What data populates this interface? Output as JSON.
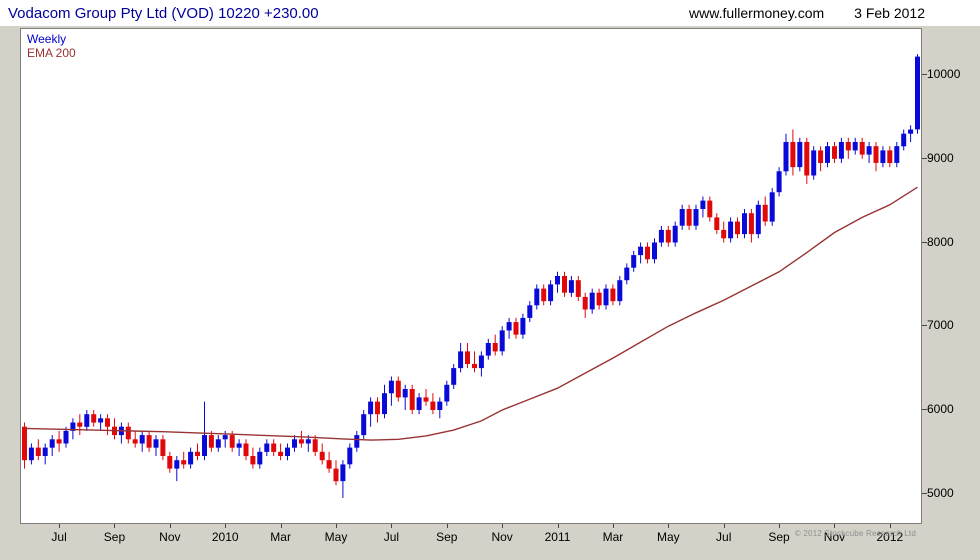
{
  "header": {
    "title": "Vodacom Group Pty Ltd (VOD) 10220 +230.00",
    "website": "www.fullermoney.com",
    "date": "3 Feb 2012"
  },
  "legend": {
    "timeframe": "Weekly",
    "overlay": "EMA 200"
  },
  "footer": {
    "copyright": "© 2012 Stockcube Research Ltd"
  },
  "colors": {
    "title": "#000099",
    "weekly_label": "#0000cc",
    "ema": "#993333",
    "up": "#0909d8",
    "down": "#e00808",
    "axis_text": "#000000",
    "copyright_text": "#8f8f8f"
  },
  "chart_data": {
    "type": "candlestick",
    "title": "Vodacom Group Pty Ltd (VOD)",
    "timeframe": "Weekly",
    "overlay": "EMA 200",
    "last_price": 10220,
    "change": 230.0,
    "y_axis": {
      "min": 4650,
      "max": 10550,
      "ticks": [
        5000,
        6000,
        7000,
        8000,
        9000,
        10000
      ]
    },
    "x_ticks": [
      {
        "label": "Jul",
        "week": 5
      },
      {
        "label": "Sep",
        "week": 13
      },
      {
        "label": "Nov",
        "week": 21
      },
      {
        "label": "2010",
        "week": 29
      },
      {
        "label": "Mar",
        "week": 37
      },
      {
        "label": "May",
        "week": 45
      },
      {
        "label": "Jul",
        "week": 53
      },
      {
        "label": "Sep",
        "week": 61
      },
      {
        "label": "Nov",
        "week": 69
      },
      {
        "label": "2011",
        "week": 77
      },
      {
        "label": "Mar",
        "week": 85
      },
      {
        "label": "May",
        "week": 93
      },
      {
        "label": "Jul",
        "week": 101
      },
      {
        "label": "Sep",
        "week": 109
      },
      {
        "label": "Nov",
        "week": 117
      },
      {
        "label": "2012",
        "week": 125
      }
    ],
    "candles_ohlc": [
      [
        5800,
        5850,
        5300,
        5400
      ],
      [
        5400,
        5600,
        5350,
        5550
      ],
      [
        5550,
        5650,
        5400,
        5450
      ],
      [
        5450,
        5600,
        5350,
        5550
      ],
      [
        5550,
        5700,
        5450,
        5650
      ],
      [
        5650,
        5750,
        5500,
        5600
      ],
      [
        5600,
        5800,
        5550,
        5750
      ],
      [
        5750,
        5900,
        5650,
        5850
      ],
      [
        5850,
        5950,
        5700,
        5800
      ],
      [
        5800,
        6000,
        5750,
        5950
      ],
      [
        5950,
        6000,
        5800,
        5850
      ],
      [
        5850,
        5950,
        5750,
        5900
      ],
      [
        5900,
        5950,
        5700,
        5800
      ],
      [
        5800,
        5900,
        5650,
        5700
      ],
      [
        5700,
        5850,
        5600,
        5800
      ],
      [
        5800,
        5850,
        5600,
        5650
      ],
      [
        5650,
        5750,
        5550,
        5600
      ],
      [
        5600,
        5750,
        5500,
        5700
      ],
      [
        5700,
        5750,
        5500,
        5550
      ],
      [
        5550,
        5700,
        5450,
        5650
      ],
      [
        5650,
        5700,
        5400,
        5450
      ],
      [
        5450,
        5500,
        5250,
        5300
      ],
      [
        5300,
        5450,
        5150,
        5400
      ],
      [
        5400,
        5500,
        5300,
        5350
      ],
      [
        5350,
        5550,
        5300,
        5500
      ],
      [
        5500,
        5600,
        5400,
        5450
      ],
      [
        5450,
        6100,
        5400,
        5700
      ],
      [
        5700,
        5750,
        5500,
        5550
      ],
      [
        5550,
        5700,
        5500,
        5650
      ],
      [
        5650,
        5750,
        5550,
        5700
      ],
      [
        5700,
        5750,
        5500,
        5550
      ],
      [
        5550,
        5650,
        5450,
        5600
      ],
      [
        5600,
        5650,
        5400,
        5450
      ],
      [
        5450,
        5550,
        5300,
        5350
      ],
      [
        5350,
        5550,
        5300,
        5500
      ],
      [
        5500,
        5650,
        5450,
        5600
      ],
      [
        5600,
        5650,
        5450,
        5500
      ],
      [
        5500,
        5600,
        5400,
        5450
      ],
      [
        5450,
        5600,
        5400,
        5550
      ],
      [
        5550,
        5700,
        5500,
        5650
      ],
      [
        5650,
        5750,
        5550,
        5600
      ],
      [
        5600,
        5700,
        5500,
        5650
      ],
      [
        5650,
        5700,
        5450,
        5500
      ],
      [
        5500,
        5600,
        5350,
        5400
      ],
      [
        5400,
        5500,
        5250,
        5300
      ],
      [
        5300,
        5400,
        5100,
        5150
      ],
      [
        5150,
        5400,
        4950,
        5350
      ],
      [
        5350,
        5600,
        5300,
        5550
      ],
      [
        5550,
        5750,
        5500,
        5700
      ],
      [
        5700,
        6000,
        5650,
        5950
      ],
      [
        5950,
        6150,
        5800,
        6100
      ],
      [
        6100,
        6150,
        5850,
        5950
      ],
      [
        5950,
        6300,
        5900,
        6200
      ],
      [
        6200,
        6400,
        6050,
        6350
      ],
      [
        6350,
        6400,
        6100,
        6150
      ],
      [
        6150,
        6300,
        6000,
        6250
      ],
      [
        6250,
        6300,
        5950,
        6000
      ],
      [
        6000,
        6200,
        5950,
        6150
      ],
      [
        6150,
        6250,
        6050,
        6100
      ],
      [
        6100,
        6200,
        5950,
        6000
      ],
      [
        6000,
        6150,
        5900,
        6100
      ],
      [
        6100,
        6350,
        6050,
        6300
      ],
      [
        6300,
        6550,
        6250,
        6500
      ],
      [
        6500,
        6800,
        6450,
        6700
      ],
      [
        6700,
        6800,
        6500,
        6550
      ],
      [
        6550,
        6700,
        6450,
        6500
      ],
      [
        6500,
        6700,
        6400,
        6650
      ],
      [
        6650,
        6850,
        6600,
        6800
      ],
      [
        6800,
        6900,
        6650,
        6700
      ],
      [
        6700,
        7000,
        6650,
        6950
      ],
      [
        6950,
        7100,
        6850,
        7050
      ],
      [
        7050,
        7100,
        6850,
        6900
      ],
      [
        6900,
        7150,
        6850,
        7100
      ],
      [
        7100,
        7300,
        7050,
        7250
      ],
      [
        7250,
        7500,
        7200,
        7450
      ],
      [
        7450,
        7500,
        7250,
        7300
      ],
      [
        7300,
        7550,
        7250,
        7500
      ],
      [
        7500,
        7650,
        7400,
        7600
      ],
      [
        7600,
        7650,
        7350,
        7400
      ],
      [
        7400,
        7600,
        7350,
        7550
      ],
      [
        7550,
        7600,
        7300,
        7350
      ],
      [
        7350,
        7400,
        7100,
        7200
      ],
      [
        7200,
        7450,
        7150,
        7400
      ],
      [
        7400,
        7450,
        7200,
        7250
      ],
      [
        7250,
        7500,
        7200,
        7450
      ],
      [
        7450,
        7500,
        7250,
        7300
      ],
      [
        7300,
        7600,
        7250,
        7550
      ],
      [
        7550,
        7750,
        7500,
        7700
      ],
      [
        7700,
        7900,
        7650,
        7850
      ],
      [
        7850,
        8000,
        7750,
        7950
      ],
      [
        7950,
        8000,
        7750,
        7800
      ],
      [
        7800,
        8050,
        7750,
        8000
      ],
      [
        8000,
        8200,
        7950,
        8150
      ],
      [
        8150,
        8200,
        7950,
        8000
      ],
      [
        8000,
        8250,
        7950,
        8200
      ],
      [
        8200,
        8450,
        8150,
        8400
      ],
      [
        8400,
        8450,
        8150,
        8200
      ],
      [
        8200,
        8450,
        8150,
        8400
      ],
      [
        8400,
        8550,
        8300,
        8500
      ],
      [
        8500,
        8550,
        8250,
        8300
      ],
      [
        8300,
        8350,
        8100,
        8150
      ],
      [
        8150,
        8250,
        8000,
        8050
      ],
      [
        8050,
        8300,
        8000,
        8250
      ],
      [
        8250,
        8300,
        8050,
        8100
      ],
      [
        8100,
        8400,
        8050,
        8350
      ],
      [
        8350,
        8400,
        8000,
        8100
      ],
      [
        8100,
        8500,
        8050,
        8450
      ],
      [
        8450,
        8550,
        8200,
        8250
      ],
      [
        8250,
        8650,
        8200,
        8600
      ],
      [
        8600,
        8900,
        8550,
        8850
      ],
      [
        8850,
        9300,
        8800,
        9200
      ],
      [
        9200,
        9350,
        8800,
        8900
      ],
      [
        8900,
        9250,
        8850,
        9200
      ],
      [
        9200,
        9250,
        8700,
        8800
      ],
      [
        8800,
        9150,
        8750,
        9100
      ],
      [
        9100,
        9150,
        8850,
        8950
      ],
      [
        8950,
        9200,
        8900,
        9150
      ],
      [
        9150,
        9200,
        8950,
        9000
      ],
      [
        9000,
        9250,
        8950,
        9200
      ],
      [
        9200,
        9250,
        9000,
        9100
      ],
      [
        9100,
        9250,
        9050,
        9200
      ],
      [
        9200,
        9250,
        9000,
        9050
      ],
      [
        9050,
        9200,
        8950,
        9150
      ],
      [
        9150,
        9200,
        8850,
        8950
      ],
      [
        8950,
        9150,
        8900,
        9100
      ],
      [
        9100,
        9150,
        8900,
        8950
      ],
      [
        8950,
        9200,
        8900,
        9150
      ],
      [
        9150,
        9350,
        9100,
        9300
      ],
      [
        9300,
        9400,
        9200,
        9350
      ],
      [
        9350,
        10250,
        9300,
        10220
      ]
    ],
    "ema_points": [
      [
        0,
        5780
      ],
      [
        10,
        5760
      ],
      [
        20,
        5740
      ],
      [
        30,
        5710
      ],
      [
        40,
        5680
      ],
      [
        46,
        5655
      ],
      [
        50,
        5640
      ],
      [
        54,
        5650
      ],
      [
        58,
        5690
      ],
      [
        62,
        5760
      ],
      [
        66,
        5870
      ],
      [
        69,
        6000
      ],
      [
        73,
        6130
      ],
      [
        77,
        6260
      ],
      [
        81,
        6440
      ],
      [
        85,
        6620
      ],
      [
        89,
        6810
      ],
      [
        93,
        7000
      ],
      [
        97,
        7160
      ],
      [
        101,
        7310
      ],
      [
        105,
        7480
      ],
      [
        109,
        7650
      ],
      [
        113,
        7880
      ],
      [
        117,
        8120
      ],
      [
        121,
        8300
      ],
      [
        125,
        8450
      ],
      [
        129,
        8660
      ]
    ]
  }
}
